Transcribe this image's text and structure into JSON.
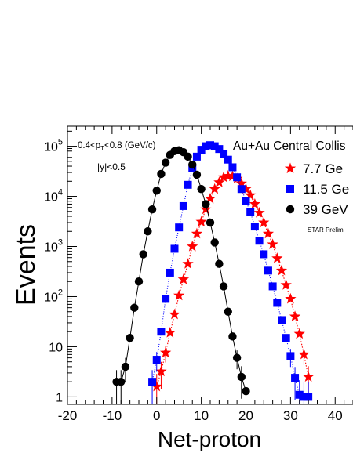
{
  "chart_data": {
    "type": "scatter",
    "xlabel": "Net-proton",
    "ylabel": "Events",
    "xlim": [
      -20,
      44
    ],
    "ylim_log10": [
      -0.15,
      5.4
    ],
    "log_y": true,
    "grid": false,
    "legend_placement": "top-right (cropped)",
    "x_ticks": [
      {
        "value": -20,
        "label": "-20"
      },
      {
        "value": -10,
        "label": "-10"
      },
      {
        "value": 0,
        "label": "0"
      },
      {
        "value": 10,
        "label": "10"
      },
      {
        "value": 20,
        "label": "20"
      },
      {
        "value": 30,
        "label": "30"
      },
      {
        "value": 40,
        "label": "40"
      }
    ],
    "y_ticks": [
      {
        "value": 1,
        "base": "1"
      },
      {
        "value": 10,
        "base": "10"
      },
      {
        "value": 100,
        "base": "10",
        "exp": "2"
      },
      {
        "value": 1000,
        "base": "10",
        "exp": "3"
      },
      {
        "value": 10000,
        "base": "10",
        "exp": "4"
      },
      {
        "value": 100000,
        "base": "10",
        "exp": "5"
      }
    ],
    "annotations": {
      "pt_cut": {
        "pre": "0.4<p",
        "sub": "T",
        "post": "<0.8 (GeV/c)"
      },
      "rapidity_cut": "|y|<0.5",
      "system": "Au+Au Central Collis",
      "watermark": "STAR Prelim"
    },
    "series": [
      {
        "name": "7.7 Ge",
        "color": "#ff0000",
        "marker": "star",
        "x": [
          0,
          1,
          2,
          3,
          4,
          5,
          6,
          7,
          8,
          9,
          10,
          11,
          12,
          13,
          14,
          15,
          16,
          17,
          18,
          19,
          20,
          21,
          22,
          23,
          24,
          25,
          26,
          27,
          28,
          29,
          30,
          31,
          32,
          33,
          34
        ],
        "y": [
          1.6,
          3.2,
          7.6,
          19,
          44,
          105,
          220,
          450,
          1000,
          1800,
          3100,
          5500,
          9000,
          14000,
          19000,
          24000,
          25500,
          25000,
          22500,
          18000,
          14000,
          10500,
          7000,
          4700,
          3000,
          1800,
          1100,
          580,
          330,
          170,
          90,
          40,
          18,
          7,
          2.5
        ]
      },
      {
        "name": "11.5 Ge",
        "color": "#0000ff",
        "marker": "square",
        "x": [
          -1,
          0,
          1,
          2,
          3,
          4,
          5,
          6,
          7,
          8,
          9,
          10,
          11,
          12,
          13,
          14,
          15,
          16,
          17,
          18,
          19,
          20,
          21,
          22,
          23,
          24,
          25,
          26,
          27,
          28,
          29,
          30,
          31,
          32,
          33,
          34
        ],
        "y": [
          2,
          5.5,
          20,
          90,
          300,
          900,
          2400,
          6400,
          17000,
          36000,
          62000,
          85000,
          100000,
          105000,
          100000,
          88000,
          70000,
          54000,
          38000,
          24000,
          14000,
          8200,
          4800,
          2500,
          1300,
          700,
          330,
          160,
          75,
          34,
          15,
          6.5,
          2.4,
          1.1,
          1,
          1
        ]
      },
      {
        "name": "39 GeV",
        "color": "#000000",
        "marker": "circle",
        "x": [
          -9,
          -8,
          -7,
          -6,
          -5,
          -4,
          -3,
          -2,
          -1,
          0,
          1,
          2,
          3,
          4,
          5,
          6,
          7,
          8,
          9,
          10,
          11,
          12,
          13,
          14,
          15,
          16,
          17,
          18,
          19,
          20
        ],
        "y": [
          2,
          2,
          4,
          15,
          60,
          200,
          700,
          2000,
          5500,
          13000,
          28000,
          47000,
          67000,
          80000,
          83000,
          76000,
          62000,
          43000,
          27000,
          14000,
          7000,
          3000,
          1200,
          450,
          160,
          50,
          16,
          6,
          2.5,
          1.3
        ]
      }
    ]
  }
}
